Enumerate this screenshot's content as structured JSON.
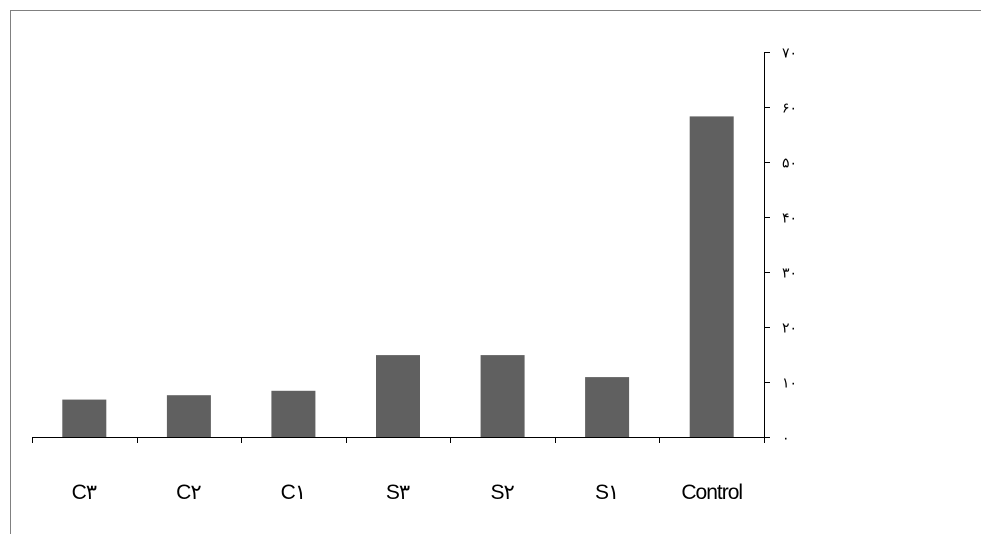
{
  "chart_data": {
    "type": "bar",
    "categories": [
      "C٣",
      "C٢",
      "C١",
      "S٣",
      "S٢",
      "S١",
      "Control"
    ],
    "values": [
      6.8,
      7.6,
      8.4,
      14.9,
      14.9,
      10.9,
      58.3
    ],
    "y_ticks": [
      {
        "value": 0,
        "label": "٠"
      },
      {
        "value": 10,
        "label": "١٠"
      },
      {
        "value": 20,
        "label": "٢٠"
      },
      {
        "value": 30,
        "label": "٣٠"
      },
      {
        "value": 40,
        "label": "۴٠"
      },
      {
        "value": 50,
        "label": "۵٠"
      },
      {
        "value": 60,
        "label": "۶٠"
      },
      {
        "value": 70,
        "label": "٧٠"
      }
    ],
    "ylim": [
      0,
      70
    ],
    "y_axis_side": "right",
    "grid": false,
    "legend": "none",
    "title": "",
    "xlabel": "",
    "ylabel": "",
    "colors": {
      "bar": "#606060",
      "axis": "#000000",
      "frame": "#808080",
      "background": "#ffffff"
    }
  }
}
